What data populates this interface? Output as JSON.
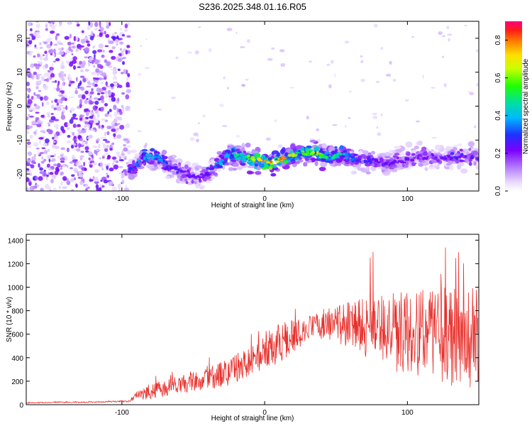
{
  "figure": {
    "title": "S236.2025.348.01.16.R05"
  },
  "chart_data": [
    {
      "type": "heatmap",
      "xlabel": "Height of straight line (km)",
      "ylabel": "Frequency (Hz)",
      "xlim": [
        -167,
        150
      ],
      "ylim": [
        -25,
        25
      ],
      "xticks": [
        -100,
        0,
        100
      ],
      "yticks": [
        -20,
        -10,
        0,
        10,
        20
      ],
      "grid": false,
      "colorbar": {
        "label": "Normalized spectral amplitude",
        "range": [
          0.0,
          0.9
        ],
        "ticks": [
          0.0,
          0.2,
          0.4,
          0.6,
          0.8
        ],
        "colormap": "rainbow (white-violet-blue-cyan-green-yellow-red-pink)"
      },
      "features": {
        "noise_band_x": [
          -167,
          -95
        ],
        "signal_track": {
          "x": [
            -95,
            -85,
            -75,
            -65,
            -55,
            -45,
            -35,
            -25,
            -15,
            -5,
            5,
            15,
            25,
            35,
            45,
            55,
            65,
            75,
            85,
            95,
            105,
            115,
            125,
            135,
            145
          ],
          "freq": [
            -19,
            -15,
            -15,
            -18,
            -20,
            -21,
            -18,
            -14,
            -15,
            -16,
            -17,
            -15,
            -14,
            -14,
            -15,
            -14,
            -16,
            -16,
            -17,
            -16,
            -15,
            -15,
            -15,
            -15,
            -15
          ],
          "peak_amplitude": [
            0.3,
            0.45,
            0.4,
            0.3,
            0.25,
            0.25,
            0.35,
            0.5,
            0.55,
            0.75,
            0.85,
            0.8,
            0.6,
            0.75,
            0.5,
            0.5,
            0.3,
            0.3,
            0.25,
            0.25,
            0.25,
            0.25,
            0.25,
            0.3,
            0.3
          ]
        }
      }
    },
    {
      "type": "line",
      "xlabel": "Height of straight line (km)",
      "ylabel": "SNR (10 * v/v)",
      "xlim": [
        -167,
        150
      ],
      "ylim": [
        0,
        1450
      ],
      "xticks": [
        -100,
        0,
        100
      ],
      "yticks": [
        0,
        200,
        400,
        600,
        800,
        1000,
        1200,
        1400
      ],
      "grid": false,
      "series": [
        {
          "color": "#e8302c",
          "x": [
            -167,
            -150,
            -130,
            -110,
            -95,
            -90,
            -85,
            -80,
            -70,
            -60,
            -50,
            -40,
            -30,
            -20,
            -10,
            0,
            10,
            20,
            30,
            40,
            50,
            60,
            70,
            80,
            90,
            100,
            110,
            120,
            130,
            140,
            150
          ],
          "y": [
            15,
            20,
            20,
            25,
            30,
            80,
            90,
            110,
            140,
            170,
            200,
            230,
            260,
            310,
            380,
            460,
            520,
            580,
            660,
            690,
            690,
            680,
            660,
            640,
            620,
            610,
            600,
            590,
            580,
            570,
            560
          ],
          "spread": [
            5,
            5,
            5,
            5,
            8,
            30,
            50,
            60,
            70,
            80,
            90,
            100,
            110,
            130,
            150,
            160,
            170,
            150,
            120,
            130,
            160,
            200,
            250,
            300,
            330,
            360,
            380,
            400,
            420,
            430,
            440
          ]
        }
      ]
    }
  ]
}
